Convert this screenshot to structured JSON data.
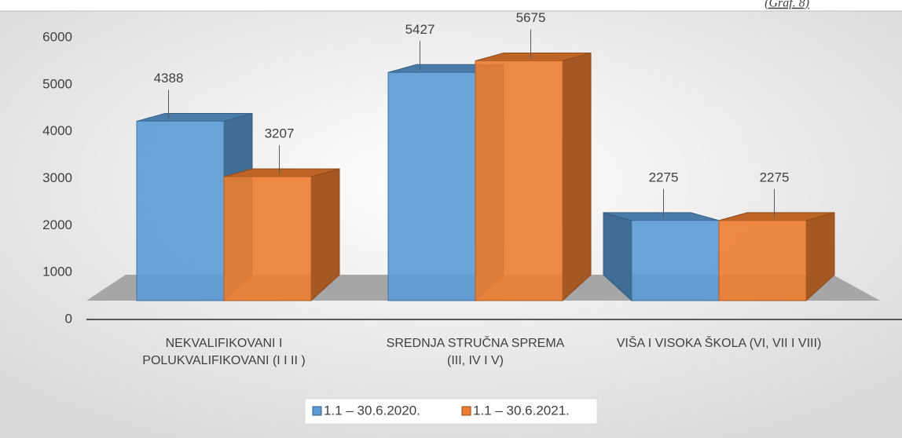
{
  "chart_data": {
    "type": "bar3d",
    "annotation": "(Graf. 8)",
    "categories": [
      "NEKVALIFIKOVANI I POLUKVALIFIKOVANI (I I II )",
      "SREDNJA STRUČNA SPREMA (III, IV I V)",
      "VIŠA I VISOKA ŠKOLA (VI, VII I VIII)"
    ],
    "series": [
      {
        "name": "1.1 – 30.6.2020.",
        "color": "#5b9bd5",
        "values": [
          4388,
          5427,
          2275
        ]
      },
      {
        "name": "1.1 – 30.6.2021.",
        "color": "#ed7d31",
        "values": [
          3207,
          5675,
          2275
        ]
      }
    ],
    "ylim": [
      0,
      6000
    ],
    "yticks": [
      0,
      1000,
      2000,
      3000,
      4000,
      5000,
      6000
    ],
    "legend": "bottom"
  }
}
